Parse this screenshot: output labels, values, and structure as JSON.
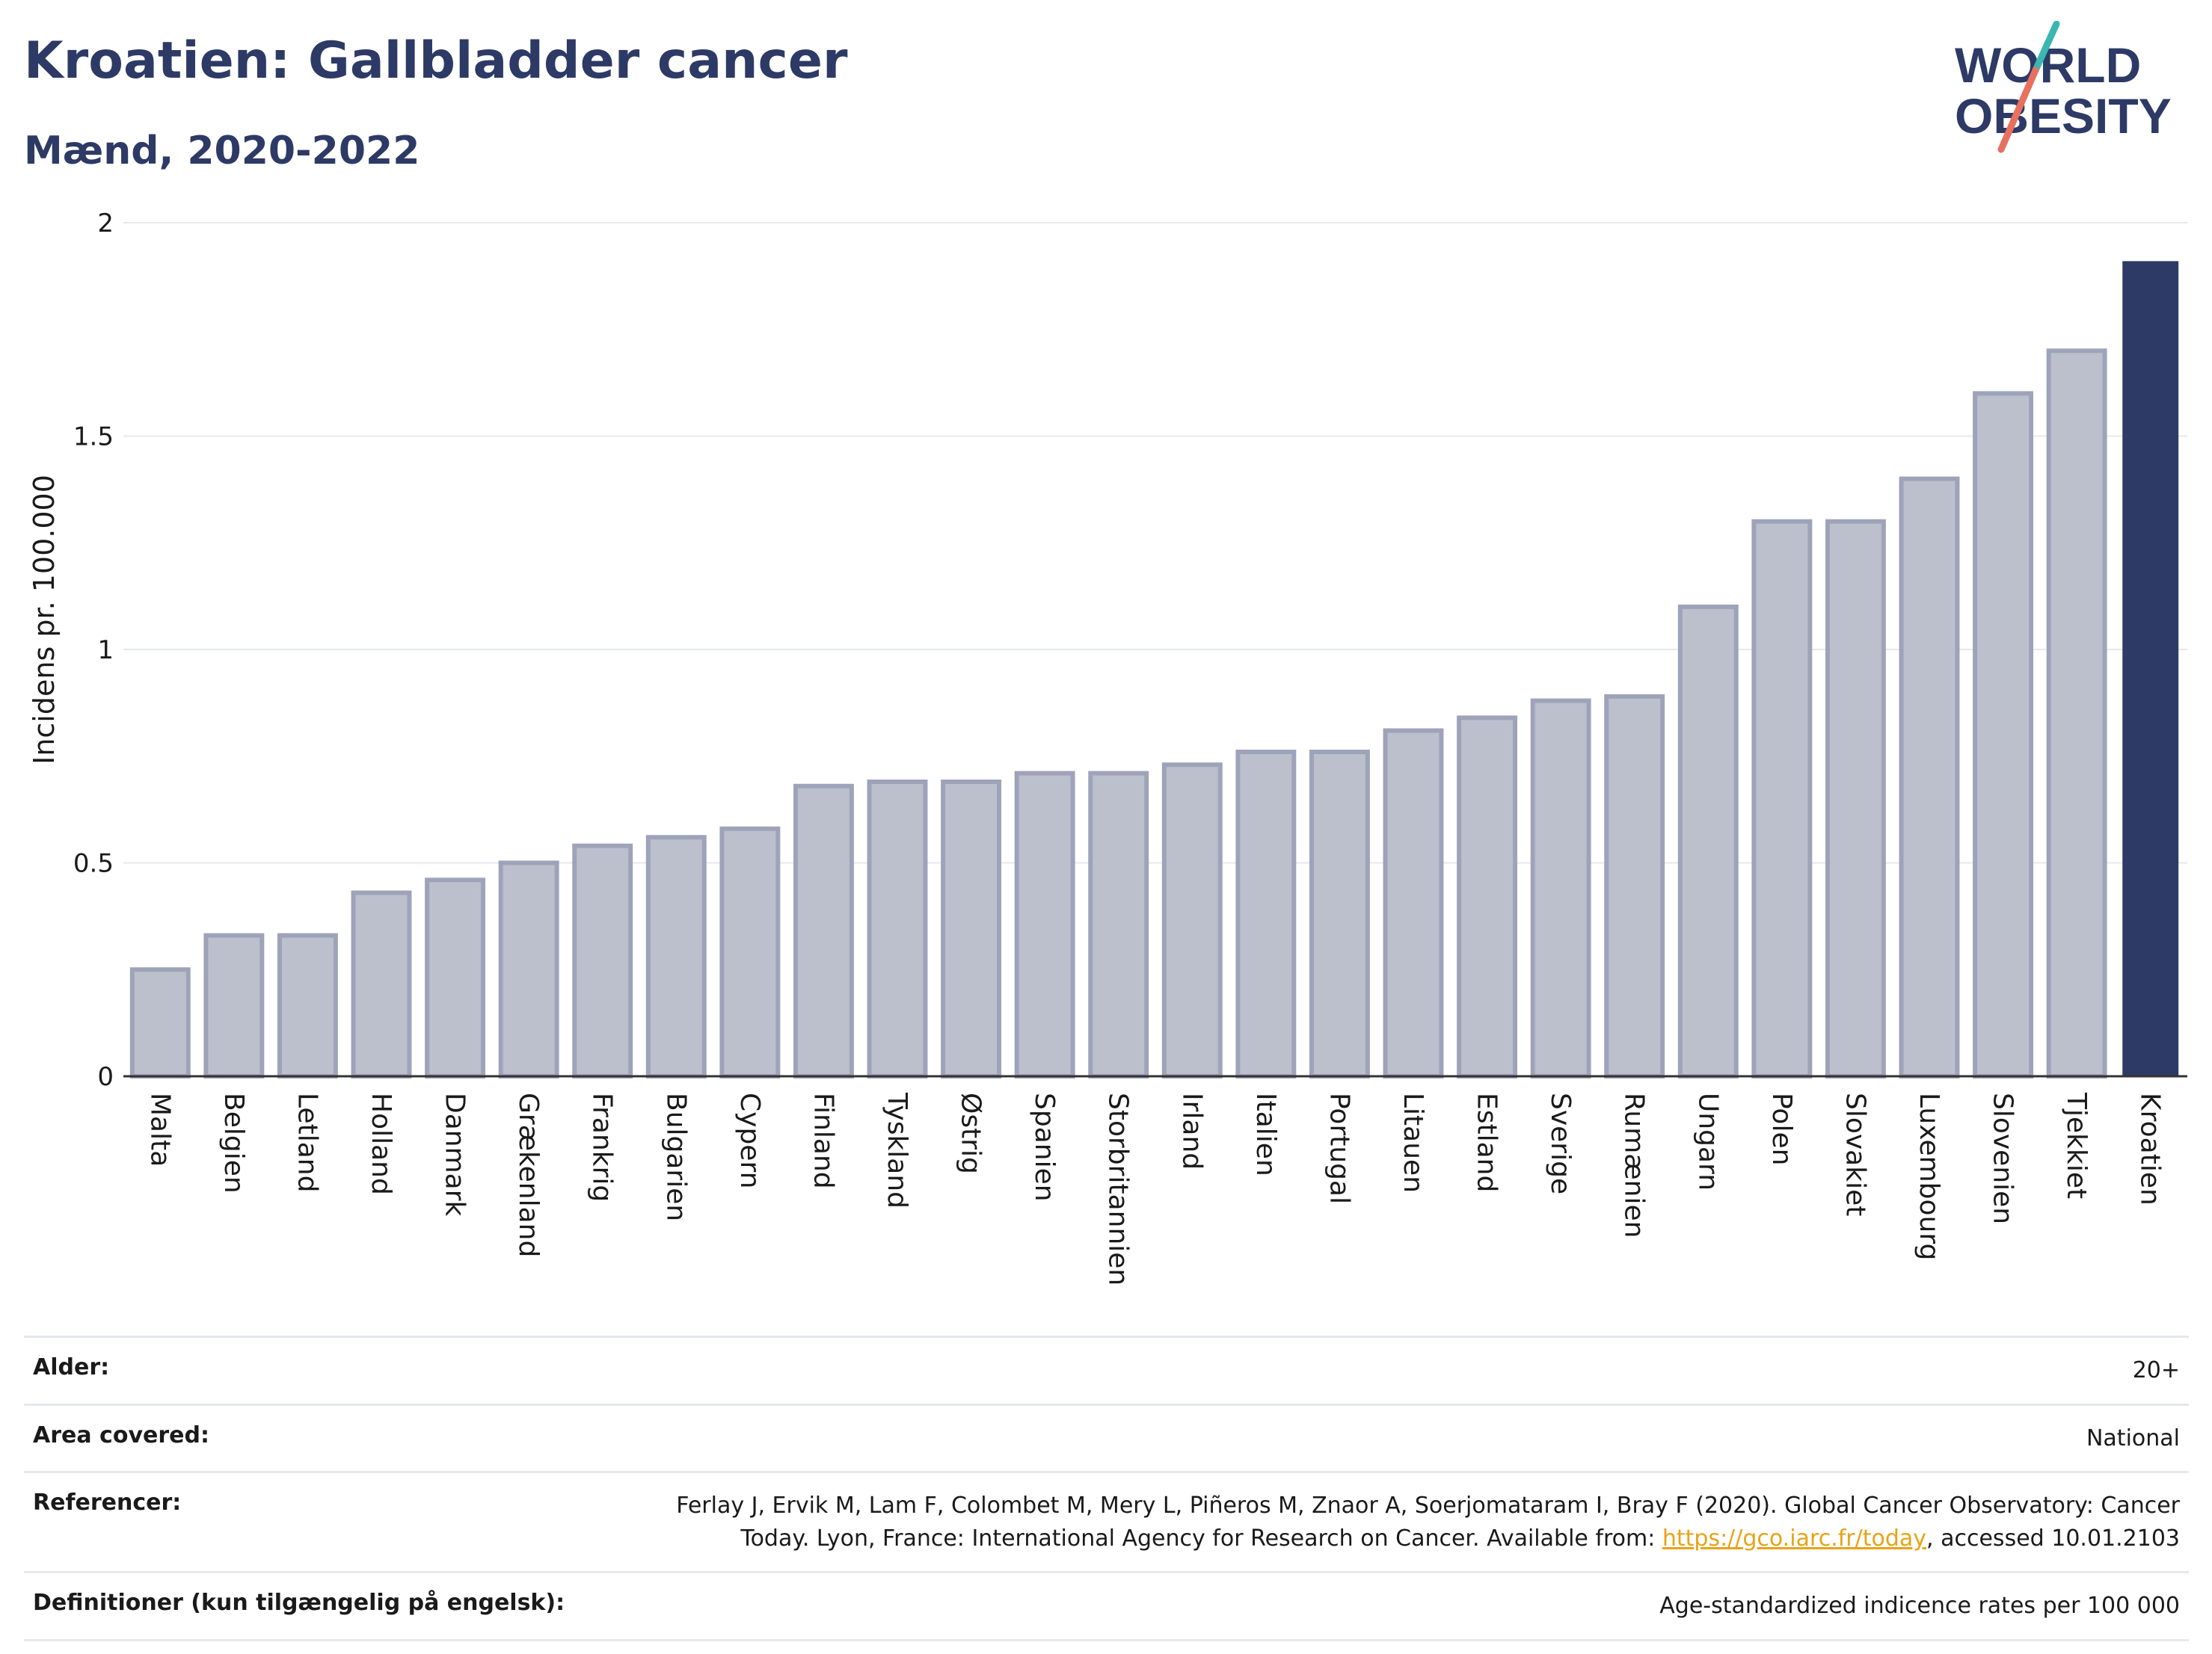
{
  "header": {
    "title": "Kroatien: Gallbladder cancer",
    "subtitle": "Mænd, 2020-2022"
  },
  "logo": {
    "line1": "WORLD",
    "line2": "OBESITY"
  },
  "colors": {
    "bar": "#bcc0cd",
    "bar_stroke": "#9ea3b9",
    "highlight": "#2d3a66",
    "grid": "#e6e8ee",
    "axis": "#333333",
    "logo_text": "#2d3a66",
    "logo_teal": "#3ab7b0",
    "logo_coral": "#e8705f"
  },
  "chart_data": {
    "type": "bar",
    "title": "Kroatien: Gallbladder cancer",
    "subtitle": "Mænd, 2020-2022",
    "xlabel": "",
    "ylabel": "Incidens pr. 100.000",
    "ylim": [
      0,
      2
    ],
    "yticks": [
      {
        "value": 0,
        "label": "0"
      },
      {
        "value": 0.5,
        "label": "0.5"
      },
      {
        "value": 1,
        "label": "1"
      },
      {
        "value": 1.5,
        "label": "1.5"
      },
      {
        "value": 2,
        "label": "2"
      }
    ],
    "grid": true,
    "highlight": "Kroatien",
    "categories": [
      "Malta",
      "Belgien",
      "Letland",
      "Holland",
      "Danmark",
      "Grækenland",
      "Frankrig",
      "Bulgarien",
      "Cypern",
      "Finland",
      "Tyskland",
      "Østrig",
      "Spanien",
      "Storbritannien",
      "Irland",
      "Italien",
      "Portugal",
      "Litauen",
      "Estland",
      "Sverige",
      "Rumænien",
      "Ungarn",
      "Polen",
      "Slovakiet",
      "Luxembourg",
      "Slovenien",
      "Tjekkiet",
      "Kroatien"
    ],
    "values": [
      0.25,
      0.33,
      0.33,
      0.43,
      0.46,
      0.5,
      0.54,
      0.56,
      0.58,
      0.68,
      0.69,
      0.69,
      0.71,
      0.71,
      0.73,
      0.76,
      0.76,
      0.81,
      0.84,
      0.88,
      0.89,
      1.1,
      1.3,
      1.3,
      1.4,
      1.6,
      1.7,
      1.91
    ]
  },
  "info": {
    "rows": [
      {
        "label": "Alder:",
        "value": "20+"
      },
      {
        "label": "Area covered:",
        "value": "National"
      },
      {
        "label": "Referencer:",
        "value_line1": "Ferlay J, Ervik M, Lam F, Colombet M, Mery L, Piñeros M, Znaor A, Soerjomataram I, Bray F (2020). Global Cancer Observatory: Cancer",
        "value_line2_pre": "Today. Lyon, France: International Agency for Research on Cancer. Available from: ",
        "link": "https://gco.iarc.fr/today",
        "value_line2_post": ", accessed 10.01.2103"
      },
      {
        "label": "Definitioner (kun tilgængelig på engelsk):",
        "value": "Age-standardized indicence rates per 100 000"
      }
    ]
  }
}
